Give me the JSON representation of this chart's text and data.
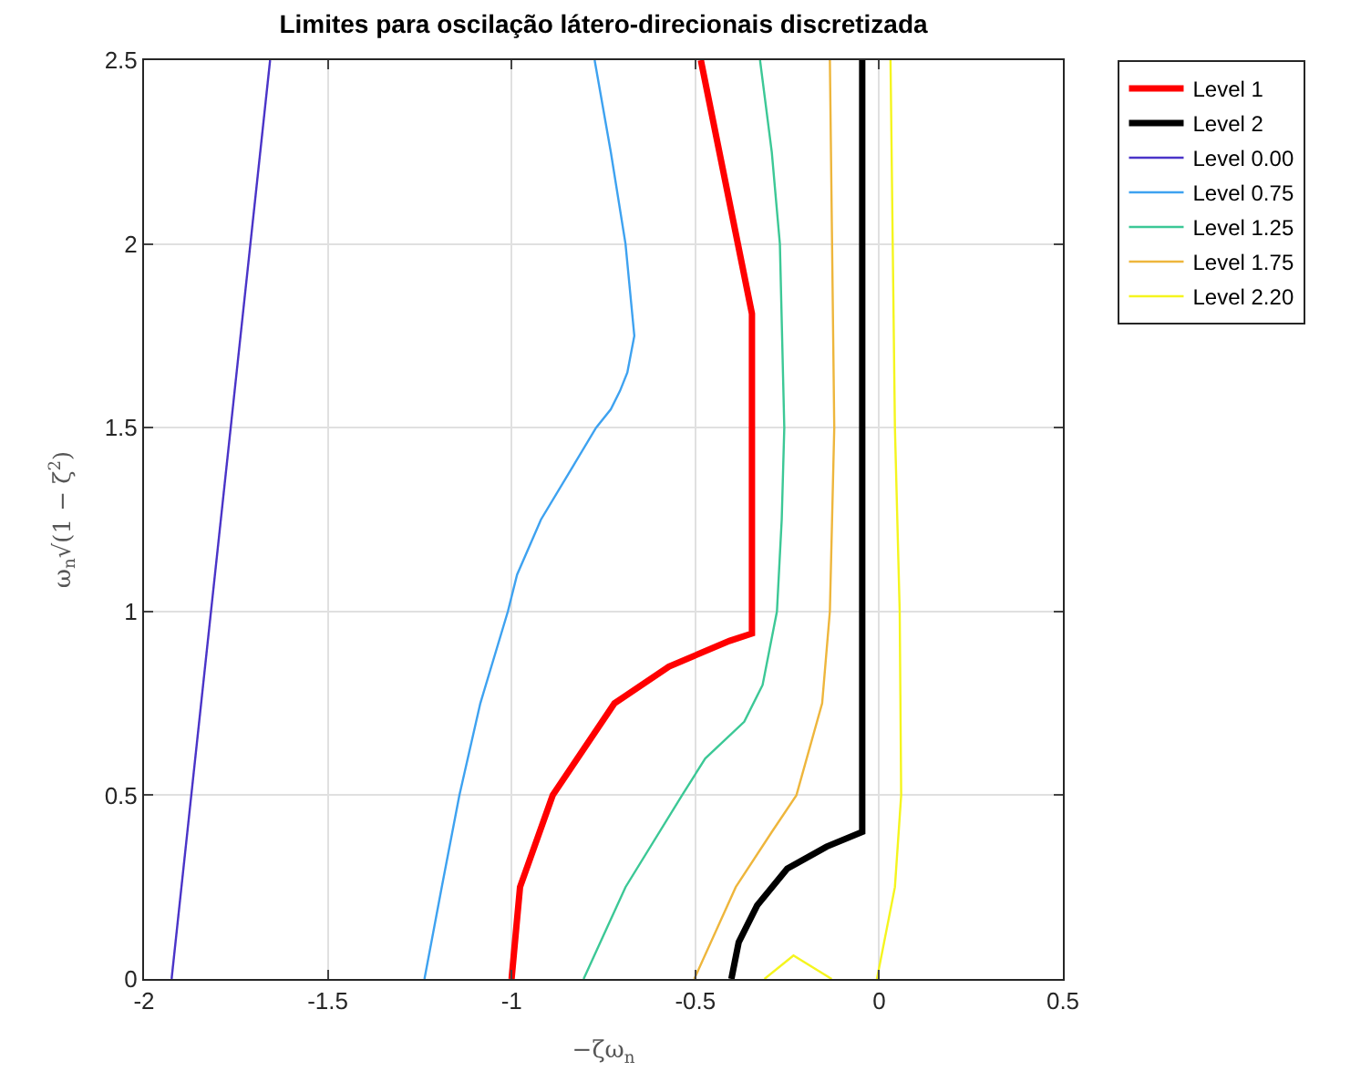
{
  "chart_data": {
    "type": "line",
    "title": "Limites para oscilação látero-direcionais discretizada",
    "xlabel": "−ζω$_{n}$",
    "ylabel": "ω$_{n}$√(1 − ζ$^{2}$)",
    "xlim": [
      -2,
      0.5
    ],
    "xticks": [
      -2,
      -1.5,
      -1,
      -0.5,
      0,
      0.5
    ],
    "ylim": [
      0,
      2.5
    ],
    "yticks": [
      0,
      0.5,
      1,
      1.5,
      2,
      2.5
    ],
    "grid": true,
    "legend": "top right",
    "marker": "none",
    "line_style": "solid",
    "series": [
      {
        "name": "Level 1",
        "color": "#ff0000",
        "x": [
          -1.0,
          -0.977,
          -0.888,
          -0.72,
          -0.572,
          -0.407,
          -0.346,
          -0.346,
          -0.485
        ],
        "values": [
          0,
          0.25,
          0.5,
          0.75,
          0.85,
          0.92,
          0.94,
          1.81,
          2.5
        ]
      },
      {
        "name": "Level 2",
        "color": "#000000",
        "x": [
          -0.402,
          -0.382,
          -0.332,
          -0.25,
          -0.143,
          -0.046,
          -0.046
        ],
        "values": [
          0,
          0.1,
          0.2,
          0.3,
          0.36,
          0.4,
          2.5
        ]
      },
      {
        "name": "Level 0.00",
        "color": "#4a34c8",
        "x": [
          -1.925,
          -1.657
        ],
        "values": [
          0,
          2.5
        ]
      },
      {
        "name": "Level 0.75",
        "color": "#3ea2f0",
        "x": [
          -1.237,
          -1.19,
          -1.142,
          -1.085,
          -1.01,
          -0.985,
          -0.92,
          -0.83,
          -0.77,
          -0.73,
          -0.705,
          -0.685,
          -0.666,
          -0.69,
          -0.73,
          -0.774
        ],
        "values": [
          0,
          0.25,
          0.5,
          0.75,
          1.0,
          1.1,
          1.25,
          1.4,
          1.5,
          1.55,
          1.6,
          1.65,
          1.75,
          2.0,
          2.25,
          2.5
        ]
      },
      {
        "name": "Level 1.25",
        "color": "#3cc896",
        "x": [
          -0.804,
          -0.69,
          -0.536,
          -0.473,
          -0.367,
          -0.317,
          -0.278,
          -0.265,
          -0.258,
          -0.27,
          -0.292,
          -0.324
        ],
        "values": [
          0,
          0.25,
          0.5,
          0.6,
          0.7,
          0.8,
          1.0,
          1.25,
          1.5,
          2.0,
          2.25,
          2.5
        ]
      },
      {
        "name": "Level 1.75",
        "color": "#eeb63c",
        "x": [
          -0.503,
          -0.39,
          -0.292,
          -0.225,
          -0.155,
          -0.134,
          -0.122,
          -0.134
        ],
        "values": [
          0,
          0.25,
          0.4,
          0.5,
          0.75,
          1.0,
          1.5,
          2.5
        ]
      },
      {
        "name": "Level 2.20",
        "color": "#f5f51e",
        "x": [
          -0.006,
          0.043,
          0.06,
          0.056,
          0.043,
          0.031,
          null,
          -0.312,
          -0.233,
          -0.129
        ],
        "values": [
          0,
          0.25,
          0.5,
          1.0,
          1.5,
          2.5,
          null,
          0,
          0.064,
          0
        ]
      }
    ]
  }
}
